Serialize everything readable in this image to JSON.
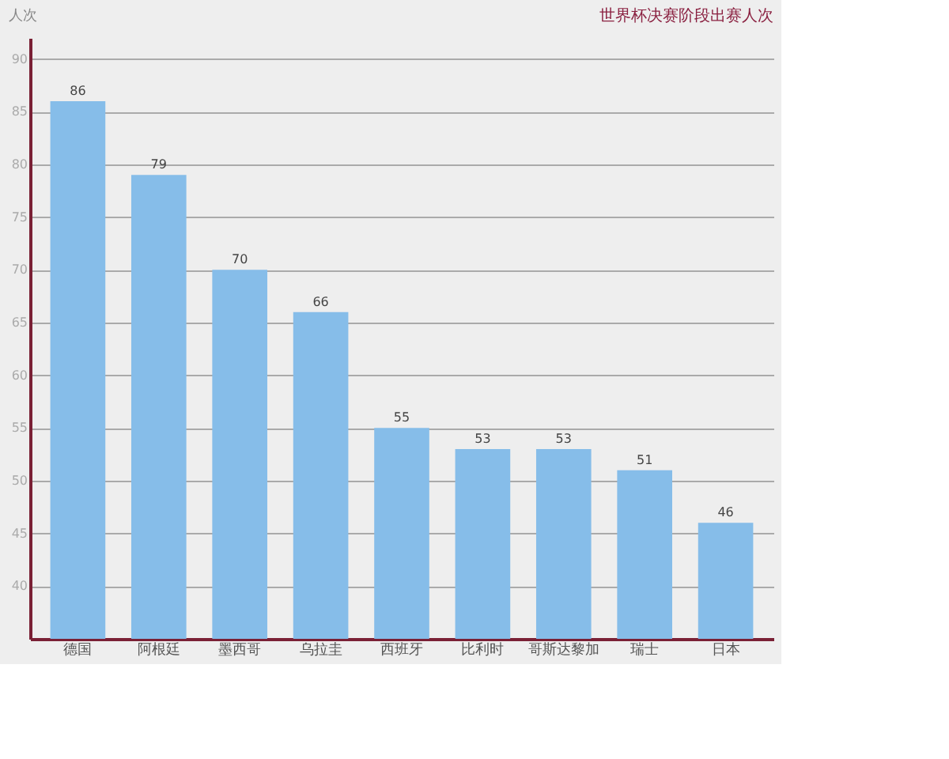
{
  "chart_data": {
    "type": "bar",
    "title": "世界杯决赛阶段出赛人次",
    "ylabel": "人次",
    "categories": [
      "德国",
      "阿根廷",
      "墨西哥",
      "乌拉圭",
      "西班牙",
      "比利时",
      "哥斯达黎加",
      "瑞士",
      "日本"
    ],
    "values": [
      86,
      79,
      70,
      66,
      55,
      53,
      53,
      51,
      46
    ],
    "color": "#86bde9",
    "ylim": [
      35,
      92
    ],
    "yticks": [
      40,
      45,
      50,
      55,
      60,
      65,
      70,
      75,
      80,
      85,
      90
    ],
    "grid": "y",
    "data_labels": true
  }
}
